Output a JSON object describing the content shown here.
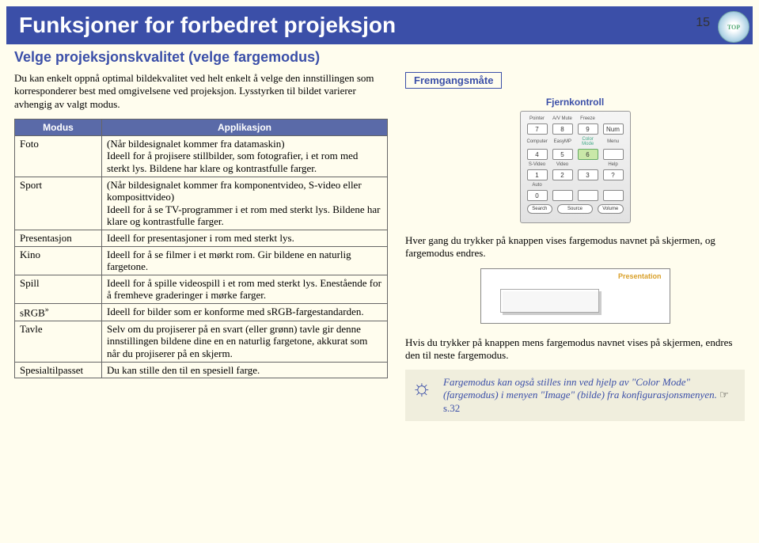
{
  "pageTitle": "Funksjoner for forbedret projeksjon",
  "pageNumber": "15",
  "topBadge": "TOP",
  "subtitle": "Velge projeksjonskvalitet (velge fargemodus)",
  "intro": "Du kan enkelt oppnå optimal bildekvalitet ved helt enkelt å velge den innstillingen som korresponderer best med omgivelsene ved projeksjon. Lysstyrken til bildet varierer avhengig av valgt modus.",
  "table": {
    "headerMode": "Modus",
    "headerApp": "Applikasjon",
    "rows": [
      {
        "mode": "Foto",
        "app": "(Når bildesignalet kommer fra datamaskin)\nIdeell for å projisere stillbilder, som fotografier, i et rom med sterkt lys. Bildene har klare og kontrastfulle farger."
      },
      {
        "mode": "Sport",
        "app": "(Når bildesignalet kommer fra komponentvideo, S-video eller komposittvideo)\nIdeell for å se TV-programmer i et rom med sterkt lys. Bildene har klare og kontrastfulle farger."
      },
      {
        "mode": "Presentasjon",
        "app": "Ideell for presentasjoner i rom med sterkt lys."
      },
      {
        "mode": "Kino",
        "app": "Ideell for å se filmer i et mørkt rom. Gir bildene en naturlig fargetone."
      },
      {
        "mode": "Spill",
        "app": "Ideell for å spille videospill i et rom med sterkt lys. Enestående for å fremheve graderinger i mørke farger."
      },
      {
        "mode": "sRGB",
        "app": "Ideell for bilder som er konforme med sRGB-fargestandarden."
      },
      {
        "mode": "Tavle",
        "app": "Selv om du projiserer på en svart (eller grønn) tavle gir denne innstillingen bildene dine en en naturlig fargetone, akkurat som når du projiserer på en skjerm."
      },
      {
        "mode": "Spesialtilpasset",
        "app": "Du kan stille den til en spesiell farge."
      }
    ]
  },
  "procLabel": "Fremgangsmåte",
  "remote": {
    "caption": "Fjernkontroll",
    "labelsRow1": [
      "Pointer",
      "A/V Mute",
      "Freeze"
    ],
    "keysRow1": [
      "7",
      "8",
      "9",
      "Num"
    ],
    "labelsRow2": [
      "Computer",
      "EasyMP",
      "",
      "Menu"
    ],
    "keysRow2": [
      "4",
      "5",
      "6"
    ],
    "labelsRow3": [
      "S-Video",
      "Video",
      "",
      "Help"
    ],
    "keysRow3": [
      "1",
      "2",
      "3",
      "?"
    ],
    "labelsRow4": [
      "Auto",
      "",
      "",
      ""
    ],
    "keysRow4": [
      "0"
    ],
    "bottomLabels": [
      "Search",
      "Source",
      "Volume"
    ],
    "colorModeLabel": "Color Mode"
  },
  "body1": "Hver gang du trykker på knappen vises fargemodus navnet på skjermen, og fargemodus endres.",
  "osdLabel": "Presentation",
  "body2": "Hvis du trykker på knappen mens fargemodus navnet vises på skjermen, endres den til neste fargemodus.",
  "tip": {
    "text1": "Fargemodus kan også stilles inn ved hjelp av \"Color Mode\" (fargemodus) i menyen \"Image\" (bilde) fra konfigurasjonsmenyen. ",
    "linkLabel": "s.32"
  }
}
